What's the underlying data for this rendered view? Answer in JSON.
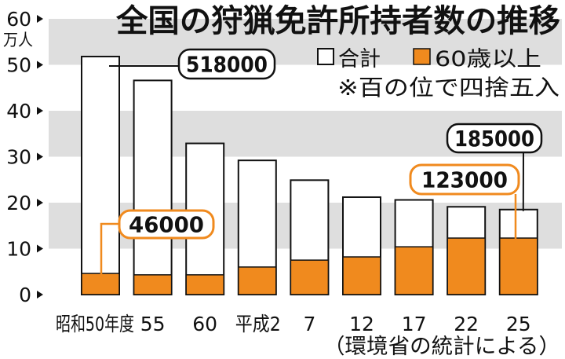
{
  "chart_data": {
    "type": "bar",
    "title": "全国の狩猟免許所持者数の推移",
    "ylabel": "万人",
    "ylim": [
      0,
      60
    ],
    "yticks": [
      0,
      10,
      20,
      30,
      40,
      50,
      60
    ],
    "categories": [
      "昭和50年度",
      "55",
      "60",
      "平成2",
      "7",
      "12",
      "17",
      "22",
      "25"
    ],
    "series": [
      {
        "name": "合計",
        "color": "#ffffff",
        "values": [
          51.8,
          46.6,
          32.9,
          29.2,
          24.9,
          21.2,
          20.6,
          19.1,
          18.5
        ]
      },
      {
        "name": "60歳以上",
        "color": "#f08a1e",
        "values": [
          4.6,
          4.3,
          4.3,
          6.0,
          7.5,
          8.2,
          10.4,
          12.3,
          12.3
        ]
      }
    ],
    "annotations": [
      {
        "text": "518000",
        "series_index": 0,
        "category_index": 0
      },
      {
        "text": "46000",
        "series_index": 1,
        "category_index": 0
      },
      {
        "text": "185000",
        "series_index": 0,
        "category_index": 8
      },
      {
        "text": "123000",
        "series_index": 1,
        "category_index": 8
      }
    ],
    "legend": "top-right",
    "grid_bands": [
      [
        10,
        20
      ],
      [
        30,
        40
      ],
      [
        50,
        60
      ]
    ],
    "band_color": "#dedede",
    "note": "※百の位で四捨五入",
    "source": "（環境省の統計による）"
  }
}
